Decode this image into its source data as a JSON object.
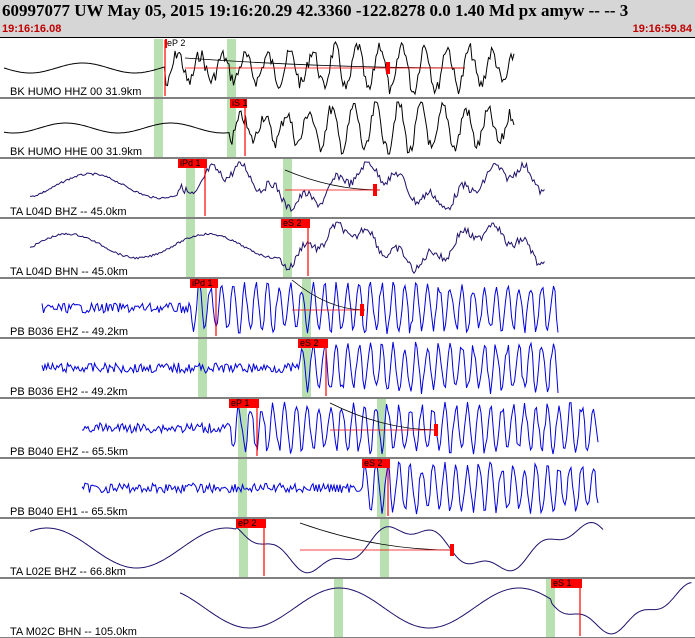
{
  "header": {
    "title": "60997077 UW May 05, 2015 19:16:20.29   42.3360 -122.8278  0.0 1.40 Md px amyw -- --   3",
    "time_start": "19:16:16.08",
    "time_end": "19:16:59.84"
  },
  "colors": {
    "header_bg": "#d6d6d6",
    "time_text": "#c00000",
    "pick_flag": "#ff0000",
    "green_band": "#b8e0b0",
    "trace_black": "#000000",
    "trace_navy": "#20106a",
    "trace_blue": "#0000dd"
  },
  "channels": [
    {
      "label": "BK HUMO HHZ 00 31.9km",
      "color": "black",
      "pick": "eP 2"
    },
    {
      "label": "BK HUMO HHE 00 31.9km",
      "color": "black",
      "pick": "iS 1"
    },
    {
      "label": "TA L04D BHZ -- 45.0km",
      "color": "navy",
      "pick": "iPd 1"
    },
    {
      "label": "TA L04D BHN -- 45.0km",
      "color": "navy",
      "pick": "eS 2"
    },
    {
      "label": "PB B036 EHZ -- 49.2km",
      "color": "blue",
      "pick": "iPd 1"
    },
    {
      "label": "PB B036 EH2 -- 49.2km",
      "color": "blue",
      "pick": "eS 2"
    },
    {
      "label": "PB B040 EHZ -- 65.5km",
      "color": "blue",
      "pick": "eP 1"
    },
    {
      "label": "PB B040 EH1 -- 65.5km",
      "color": "blue",
      "pick": "eS 2"
    },
    {
      "label": "TA L02E BHZ -- 66.8km",
      "color": "navy",
      "pick": "eP 2"
    },
    {
      "label": "TA M02C BHN -- 105.0km",
      "color": "navy",
      "pick": "eS 1"
    }
  ]
}
